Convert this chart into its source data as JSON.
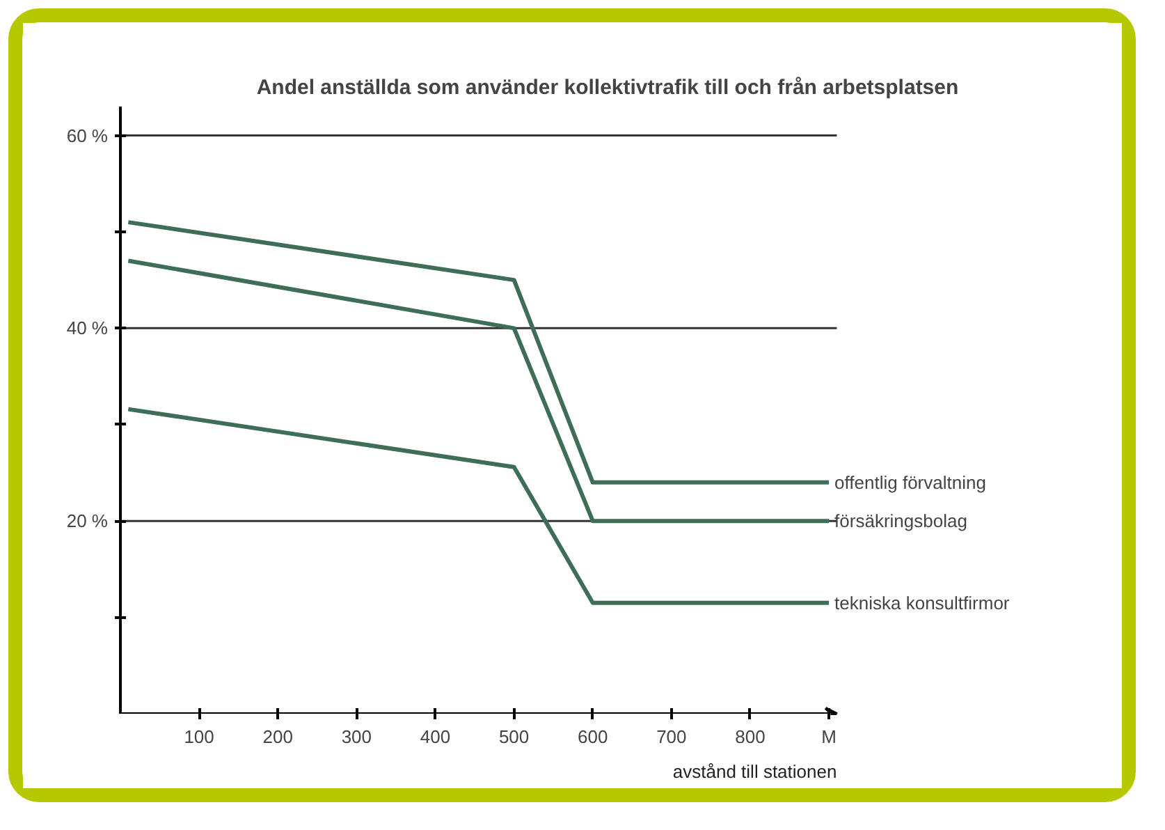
{
  "chart_data": {
    "type": "line",
    "title": "Andel anställda som använder kollektivtrafik till och från arbetsplatsen",
    "xlabel": "avstånd till stationen",
    "x": [
      10,
      500,
      600,
      900
    ],
    "series": [
      {
        "name": "offentlig förvaltning",
        "color": "#3f6e58",
        "values": [
          51,
          45,
          24,
          24
        ]
      },
      {
        "name": "försäkringsbolag",
        "color": "#3f6e58",
        "values": [
          47,
          40,
          20,
          20
        ]
      },
      {
        "name": "tekniska konsultfirmor",
        "color": "#3f6e58",
        "values": [
          31.6,
          25.6,
          11.5,
          11.5
        ]
      }
    ],
    "xlim": [
      0,
      910
    ],
    "xticks": [
      100,
      200,
      300,
      400,
      500,
      600,
      700,
      800,
      {
        "value": 900,
        "label": "M"
      }
    ],
    "ylim": [
      0,
      63
    ],
    "yticks": [
      {
        "value": 10,
        "label": null
      },
      {
        "value": 20,
        "label": "20 %"
      },
      {
        "value": 30,
        "label": null
      },
      {
        "value": 40,
        "label": "40 %"
      },
      {
        "value": 50,
        "label": null
      },
      {
        "value": 60,
        "label": "60 %"
      }
    ],
    "grid": "y",
    "legend": false,
    "marker": "none",
    "line_style": "solid"
  }
}
